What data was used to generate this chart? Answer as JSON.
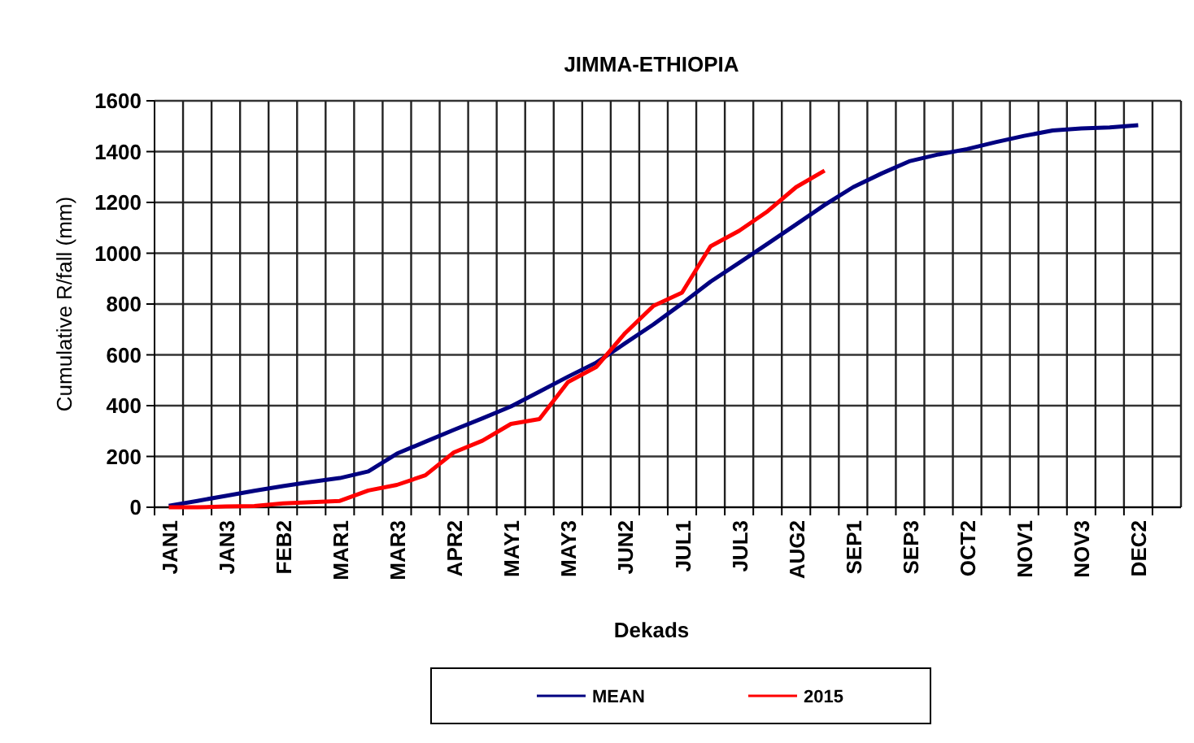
{
  "chart_data": {
    "type": "line",
    "title": "JIMMA-ETHIOPIA",
    "xlabel": "Dekads",
    "ylabel": "Cumulative R/fall (mm)",
    "categories": [
      "JAN1",
      null,
      "JAN3",
      null,
      "FEB2",
      null,
      "MAR1",
      null,
      "MAR3",
      null,
      "APR2",
      null,
      "MAY1",
      null,
      "MAY3",
      null,
      "JUN2",
      null,
      "JUL1",
      null,
      "JUL3",
      null,
      "AUG2",
      null,
      "SEP1",
      null,
      "SEP3",
      null,
      "OCT2",
      null,
      "NOV1",
      null,
      "NOV3",
      null,
      "DEC2",
      null
    ],
    "series": [
      {
        "name": "MEAN",
        "color": "#000080",
        "values": [
          6,
          25,
          45,
          65,
          83,
          100,
          115,
          141,
          211,
          258,
          305,
          350,
          397,
          455,
          514,
          570,
          645,
          720,
          802,
          888,
          962,
          1037,
          1113,
          1190,
          1260,
          1314,
          1363,
          1389,
          1410,
          1437,
          1462,
          1483,
          1491,
          1495,
          1504,
          null
        ]
      },
      {
        "name": "2015",
        "color": "#ff0000",
        "values": [
          0,
          0,
          3,
          5,
          15,
          20,
          25,
          66,
          88,
          126,
          216,
          262,
          328,
          347,
          493,
          553,
          685,
          793,
          845,
          1027,
          1088,
          1165,
          1260,
          1325,
          null,
          null,
          null,
          null,
          null,
          null,
          null,
          null,
          null,
          null,
          null,
          null
        ]
      }
    ],
    "ylim": [
      0,
      1600
    ],
    "yticks": [
      0,
      200,
      400,
      600,
      800,
      1000,
      1200,
      1400,
      1600
    ],
    "grid": true,
    "legend": "bottom",
    "marker": "none",
    "line_style": "solid"
  }
}
